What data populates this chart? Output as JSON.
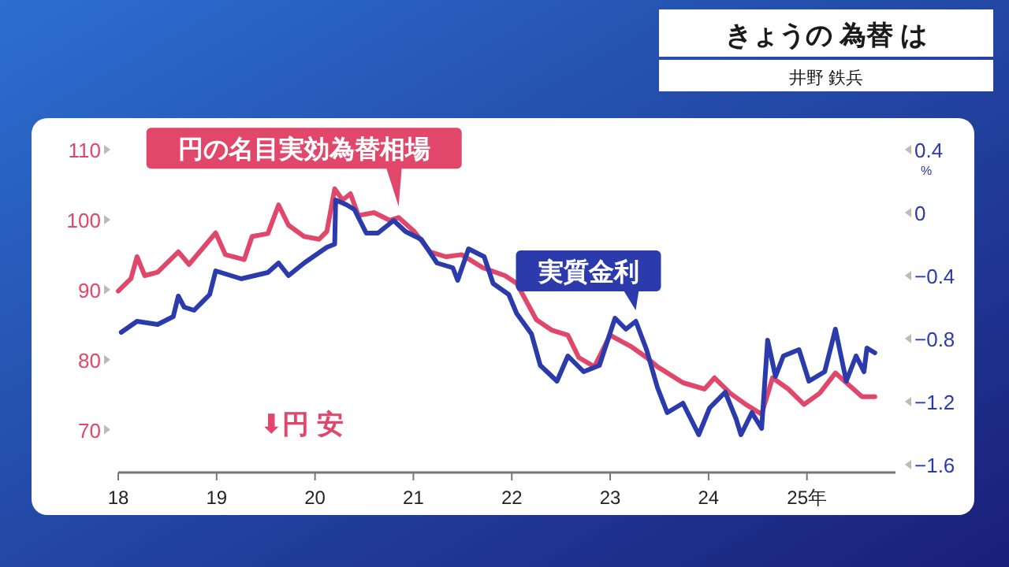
{
  "chart_data": {
    "type": "line",
    "title": "きょうの 為替 は",
    "subtitle": "井野 鉄兵",
    "xlim": [
      18,
      25.9
    ],
    "xticks": [
      18,
      19,
      20,
      21,
      22,
      23,
      24,
      {
        "value": 25,
        "label": "25年"
      }
    ],
    "ylim": [
      65,
      110
    ],
    "yticks": [
      70,
      80,
      90,
      100,
      110
    ],
    "y2lim": [
      -1.6,
      0.4
    ],
    "y2ticks": [
      {
        "value": -1.6,
        "label": "−1.6"
      },
      {
        "value": -1.2,
        "label": "−1.2"
      },
      {
        "value": -0.8,
        "label": "−0.8"
      },
      {
        "value": -0.4,
        "label": "−0.4"
      },
      0,
      0.4
    ],
    "y2label": "%",
    "annotations": [
      "⬇円 安"
    ],
    "series": [
      {
        "name": "円の名目実効為替相場",
        "color": "#e0476a",
        "x": [
          18.0,
          18.13,
          18.19,
          18.27,
          18.4,
          18.61,
          18.72,
          18.99,
          19.09,
          19.28,
          19.36,
          19.52,
          19.63,
          19.73,
          19.89,
          20.04,
          20.12,
          20.2,
          20.28,
          20.36,
          20.44,
          20.6,
          20.76,
          20.85,
          21.01,
          21.17,
          21.33,
          21.49,
          21.71,
          21.93,
          22.05,
          22.25,
          22.41,
          22.57,
          22.68,
          22.84,
          23.0,
          23.21,
          23.37,
          23.48,
          23.74,
          23.96,
          24.06,
          24.22,
          24.38,
          24.54,
          24.65,
          24.81,
          24.97,
          25.13,
          25.29,
          25.4,
          25.56,
          25.69
        ],
        "values": [
          89.8,
          91.6,
          94.7,
          92.0,
          92.5,
          95.4,
          93.6,
          98.1,
          95.0,
          94.3,
          97.6,
          98.0,
          102.1,
          99.2,
          97.6,
          97.2,
          98.3,
          104.4,
          102.8,
          103.7,
          100.6,
          101.0,
          99.9,
          100.3,
          98.3,
          95.4,
          94.7,
          95.0,
          93.1,
          92.0,
          90.9,
          85.7,
          84.2,
          83.5,
          80.3,
          79.0,
          83.5,
          81.9,
          80.3,
          79.0,
          76.7,
          75.8,
          77.4,
          75.2,
          73.6,
          72.2,
          77.4,
          75.8,
          73.6,
          75.2,
          78.1,
          76.7,
          74.7,
          74.7
        ]
      },
      {
        "name": "実質金利",
        "color": "#2b3bab",
        "axis": "y2",
        "x": [
          18.03,
          18.19,
          18.4,
          18.56,
          18.61,
          18.67,
          18.77,
          18.93,
          18.99,
          19.25,
          19.52,
          19.63,
          19.73,
          19.89,
          20.12,
          20.2,
          20.21,
          20.32,
          20.4,
          20.52,
          20.64,
          20.8,
          20.92,
          21.08,
          21.24,
          21.4,
          21.45,
          21.56,
          21.72,
          21.81,
          21.97,
          22.05,
          22.2,
          22.29,
          22.46,
          22.57,
          22.73,
          22.89,
          23.05,
          23.16,
          23.26,
          23.37,
          23.48,
          23.58,
          23.74,
          23.9,
          24.01,
          24.17,
          24.28,
          24.33,
          24.44,
          24.54,
          24.6,
          24.68,
          24.76,
          24.92,
          25.02,
          25.18,
          25.29,
          25.4,
          25.5,
          25.58,
          25.61,
          25.69
        ],
        "values": [
          -0.76,
          -0.69,
          -0.71,
          -0.66,
          -0.53,
          -0.6,
          -0.62,
          -0.52,
          -0.37,
          -0.42,
          -0.38,
          -0.32,
          -0.4,
          -0.32,
          -0.22,
          -0.2,
          0.08,
          0.05,
          0.02,
          -0.13,
          -0.13,
          -0.05,
          -0.12,
          -0.17,
          -0.32,
          -0.35,
          -0.43,
          -0.23,
          -0.28,
          -0.45,
          -0.52,
          -0.64,
          -0.77,
          -0.97,
          -1.07,
          -0.91,
          -1.01,
          -0.97,
          -0.67,
          -0.74,
          -0.69,
          -0.87,
          -1.11,
          -1.27,
          -1.21,
          -1.41,
          -1.24,
          -1.14,
          -1.31,
          -1.41,
          -1.27,
          -1.37,
          -0.81,
          -1.04,
          -0.91,
          -0.87,
          -1.07,
          -1.01,
          -0.74,
          -1.07,
          -0.91,
          -1.01,
          -0.86,
          -0.89
        ]
      }
    ]
  }
}
